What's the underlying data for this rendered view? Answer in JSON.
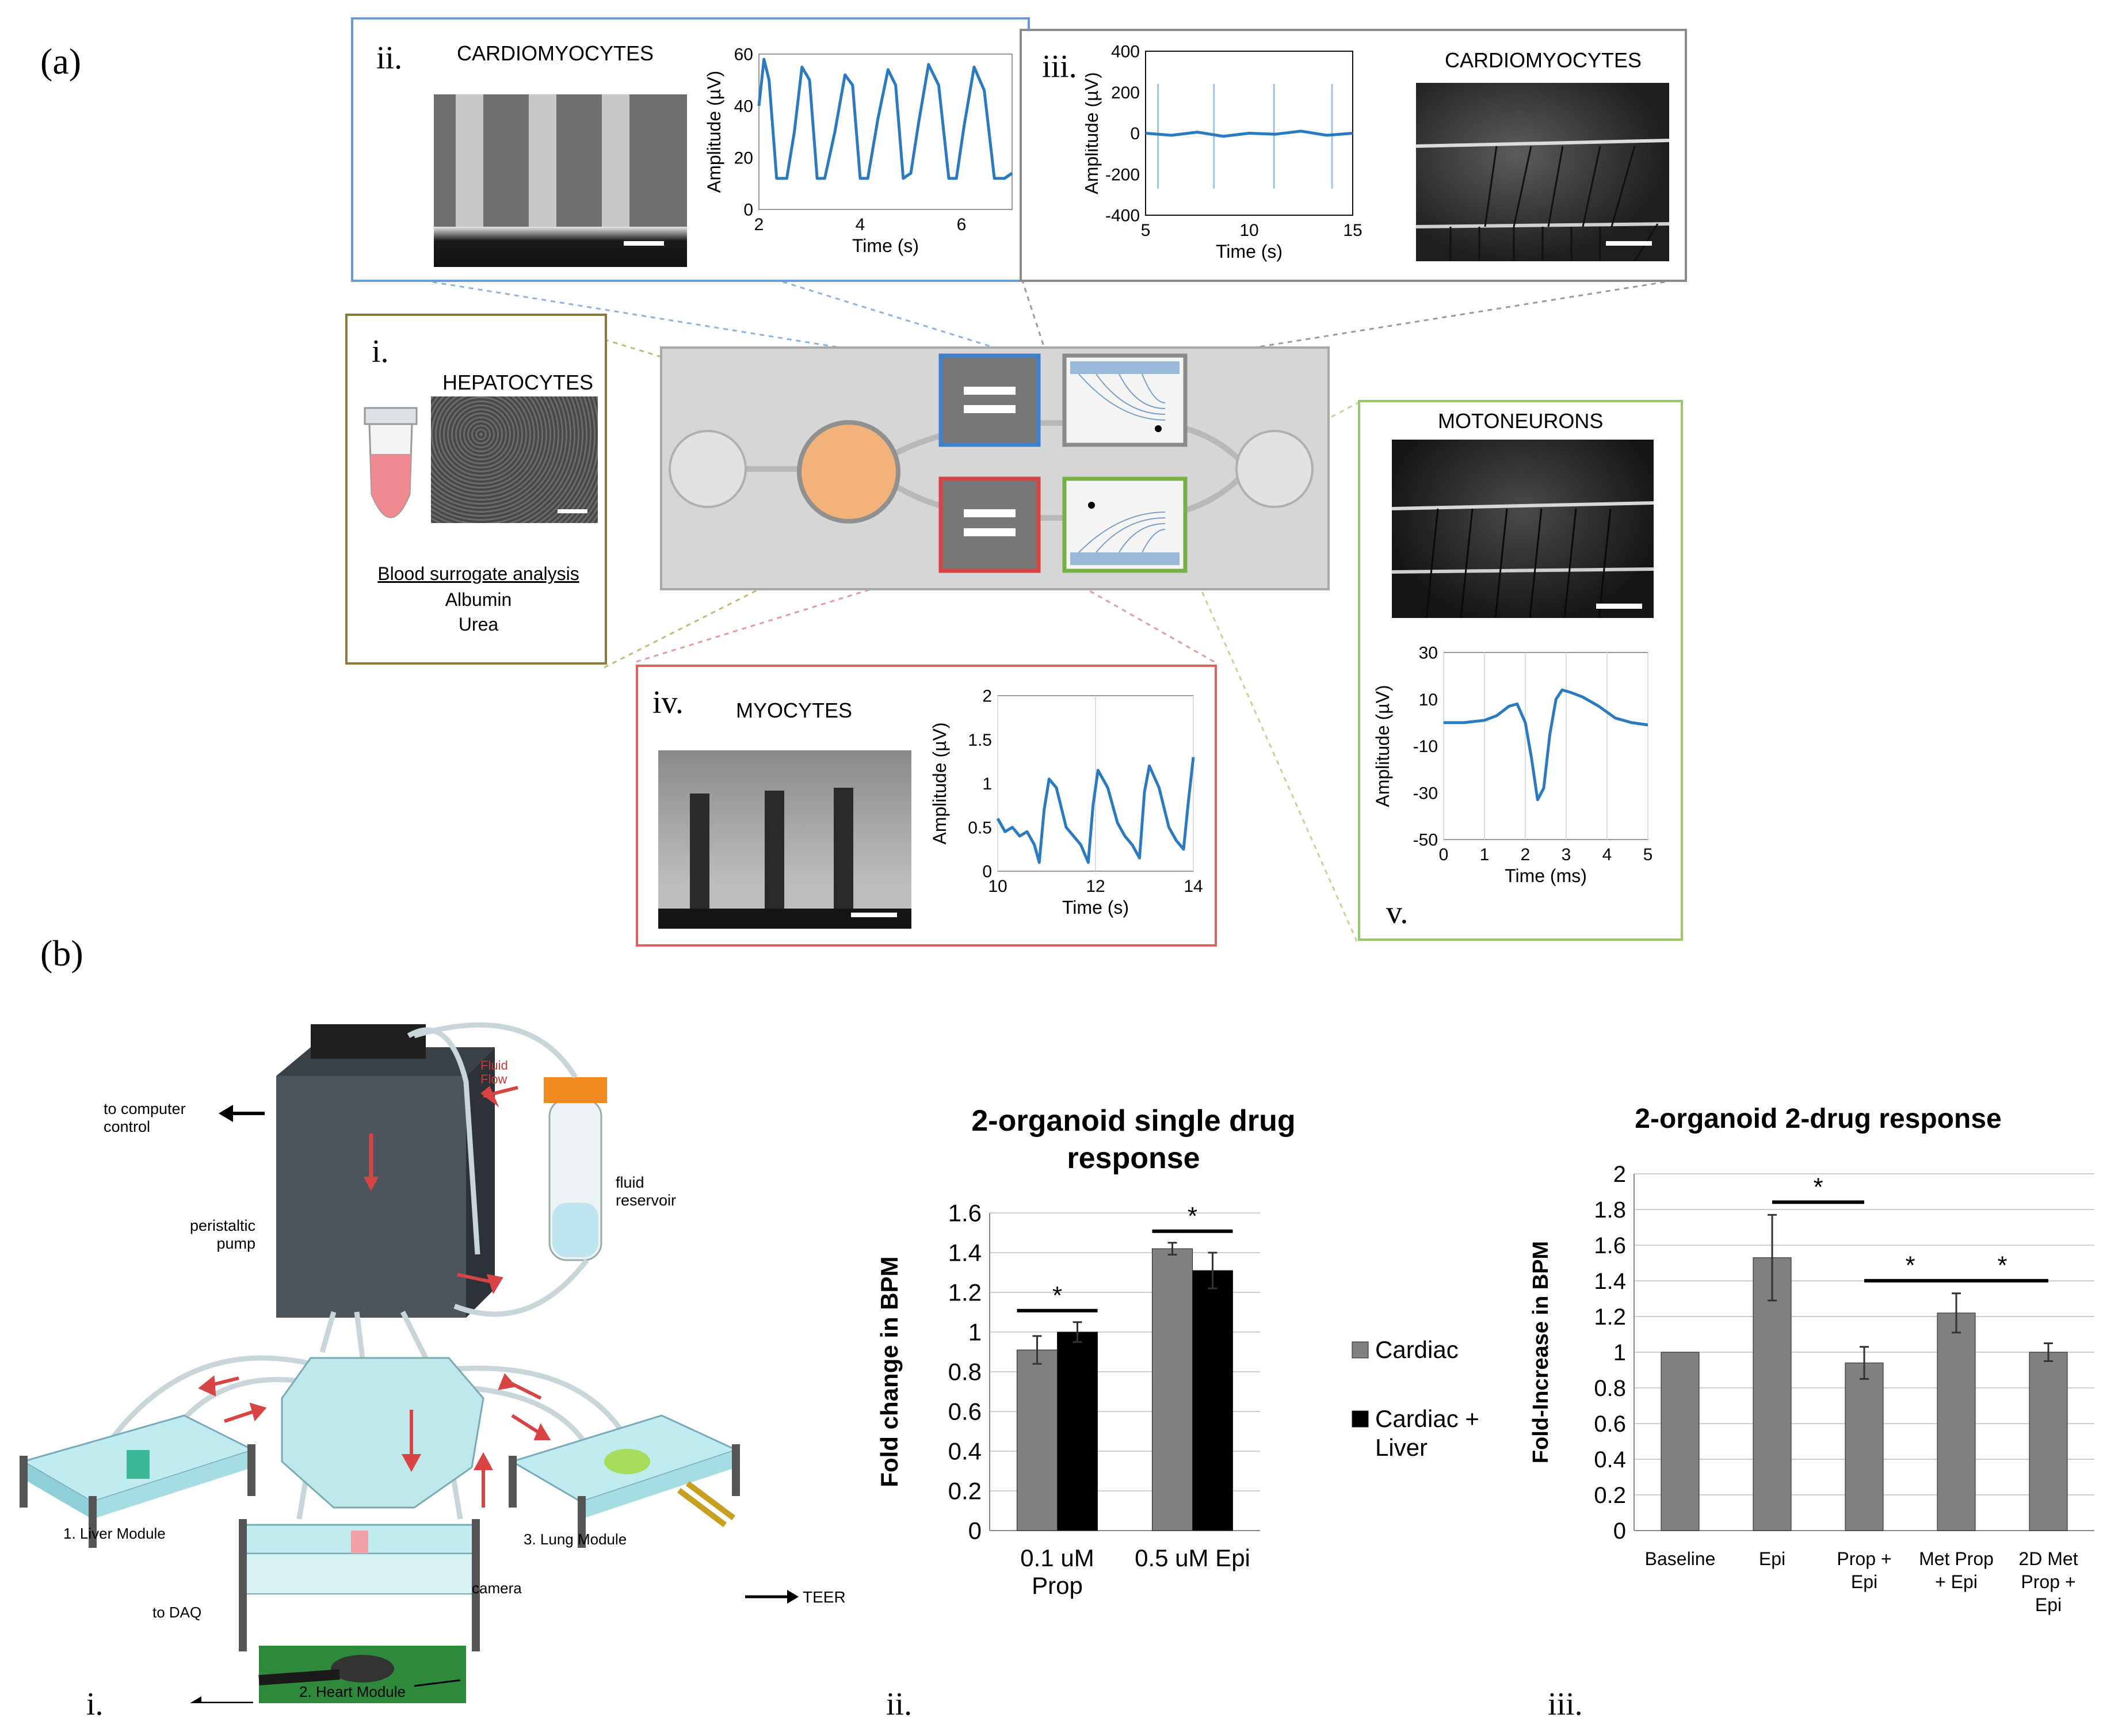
{
  "panel_a": {
    "label": "(a)",
    "i": {
      "roman": "i.",
      "title": "HEPATOCYTES",
      "analysis_heading": "Blood surrogate analysis",
      "analytes": [
        "Albumin",
        "Urea"
      ],
      "colors": {
        "border": "#8b7a3a",
        "fluid": "#f08a90"
      }
    },
    "ii": {
      "roman": "ii.",
      "title": "CARDIOMYOCYTES",
      "colors": {
        "border": "#6a9bd2",
        "trace": "#2a7ac0"
      },
      "chart_data": {
        "type": "line",
        "xlabel": "Time (s)",
        "ylabel": "Amplitude (µV)",
        "xlim": [
          2,
          7
        ],
        "ylim": [
          0,
          60
        ],
        "xticks": [
          2,
          4,
          6
        ],
        "yticks": [
          0,
          20,
          40,
          60
        ],
        "x": [
          2.0,
          2.1,
          2.2,
          2.35,
          2.55,
          2.7,
          2.85,
          3.0,
          3.15,
          3.3,
          3.5,
          3.7,
          3.85,
          4.0,
          4.15,
          4.35,
          4.55,
          4.7,
          4.85,
          5.0,
          5.15,
          5.35,
          5.55,
          5.75,
          5.9,
          6.05,
          6.25,
          6.45,
          6.65,
          6.85,
          7.0
        ],
        "y": [
          40,
          58,
          50,
          12,
          12,
          30,
          55,
          50,
          12,
          12,
          30,
          52,
          48,
          12,
          12,
          35,
          54,
          48,
          12,
          14,
          33,
          56,
          48,
          12,
          12,
          32,
          55,
          46,
          12,
          12,
          14
        ]
      }
    },
    "iii": {
      "roman": "iii.",
      "title": "CARDIOMYOCYTES",
      "colors": {
        "border": "#8a8a8a",
        "trace": "#2a7ac0"
      },
      "chart_data": {
        "type": "line",
        "xlabel": "Time (s)",
        "ylabel": "Amplitude (µV)",
        "xlim": [
          5,
          15
        ],
        "ylim": [
          -400,
          400
        ],
        "xticks": [
          5,
          10,
          15
        ],
        "yticks": [
          -400,
          -200,
          0,
          200,
          400
        ],
        "spikes_x": [
          5.6,
          8.3,
          11.2,
          14.0
        ],
        "spike_range": [
          -270,
          240
        ],
        "baseline": [
          0,
          -10,
          5,
          -15,
          0,
          -5,
          10,
          -10,
          0
        ]
      }
    },
    "iv": {
      "roman": "iv.",
      "title": "MYOCYTES",
      "colors": {
        "border": "#e06060",
        "trace": "#2a7ac0"
      },
      "chart_data": {
        "type": "line",
        "xlabel": "Time (s)",
        "ylabel": "Amplitude (µV)",
        "xlim": [
          10,
          14
        ],
        "ylim": [
          0,
          2
        ],
        "xticks": [
          10,
          12,
          14
        ],
        "yticks": [
          0,
          0.5,
          1,
          1.5,
          2
        ],
        "x": [
          10.0,
          10.15,
          10.3,
          10.45,
          10.6,
          10.75,
          10.85,
          10.95,
          11.05,
          11.2,
          11.4,
          11.55,
          11.7,
          11.85,
          11.95,
          12.05,
          12.25,
          12.45,
          12.6,
          12.75,
          12.9,
          13.0,
          13.1,
          13.3,
          13.5,
          13.65,
          13.8,
          13.9,
          14.0
        ],
        "y": [
          0.6,
          0.45,
          0.5,
          0.4,
          0.45,
          0.3,
          0.1,
          0.7,
          1.05,
          0.95,
          0.5,
          0.4,
          0.3,
          0.1,
          0.75,
          1.15,
          0.95,
          0.55,
          0.4,
          0.3,
          0.15,
          0.9,
          1.2,
          0.95,
          0.5,
          0.35,
          0.25,
          0.8,
          1.3
        ]
      }
    },
    "v": {
      "roman": "v.",
      "title": "MOTONEURONS",
      "colors": {
        "border": "#98c868",
        "trace": "#2a7ac0"
      },
      "chart_data": {
        "type": "line",
        "xlabel": "Time (ms)",
        "ylabel": "Amplitude (µV)",
        "xlim": [
          0,
          5
        ],
        "ylim": [
          -50,
          30
        ],
        "xticks": [
          0,
          1,
          2,
          3,
          4,
          5
        ],
        "yticks": [
          -50,
          -30,
          -10,
          10,
          30
        ],
        "x": [
          0,
          0.5,
          1.0,
          1.3,
          1.6,
          1.8,
          2.0,
          2.15,
          2.3,
          2.45,
          2.6,
          2.75,
          2.9,
          3.1,
          3.4,
          3.8,
          4.2,
          4.6,
          5.0
        ],
        "y": [
          0,
          0,
          1,
          3,
          7,
          8,
          0,
          -15,
          -33,
          -28,
          -5,
          10,
          14,
          13,
          11,
          7,
          2,
          0,
          -1
        ]
      }
    },
    "chip_colors": {
      "blue": "#3f7fd0",
      "gray": "#8a8a8a",
      "red": "#d84444",
      "green": "#78b048",
      "reservoir": "#f2b27a"
    }
  },
  "panel_b": {
    "label": "(b)",
    "i": {
      "roman": "i.",
      "labels": {
        "computer": "to computer\ncontrol",
        "fluid_flow": "Fluid\nFlow",
        "fluid_reservoir": "fluid\nreservoir",
        "pump": "peristaltic\npump",
        "liver": "1. Liver Module",
        "heart": "2. Heart Module",
        "lung": "3. Lung Module",
        "camera": "camera",
        "daq": "to DAQ",
        "teer": "TEER"
      }
    },
    "ii": {
      "roman": "ii.",
      "chart_data": {
        "type": "bar",
        "title": "2-organoid single drug response",
        "ylabel": "Fold change in BPM",
        "categories": [
          "0.1 uM Prop",
          "0.5 uM Epi"
        ],
        "ylim": [
          0,
          1.6
        ],
        "yticks": [
          0,
          0.2,
          0.4,
          0.6,
          0.8,
          1,
          1.2,
          1.4,
          1.6
        ],
        "series": [
          {
            "name": "Cardiac",
            "color": "#808080",
            "values": [
              0.91,
              1.42
            ],
            "errors": [
              0.07,
              0.03
            ]
          },
          {
            "name": "Cardiac + Liver",
            "color": "#000000",
            "values": [
              1.0,
              1.31
            ],
            "errors": [
              0.05,
              0.09
            ]
          }
        ],
        "significance": [
          "*",
          "*"
        ],
        "category_lines": [
          [
            "0.1 uM",
            "Prop"
          ],
          [
            "0.5 uM Epi"
          ]
        ],
        "legend_lines": [
          [
            "Cardiac"
          ],
          [
            "Cardiac +",
            "Liver"
          ]
        ]
      }
    },
    "iii": {
      "roman": "iii.",
      "chart_data": {
        "type": "bar",
        "title": "2-organoid 2-drug response",
        "ylabel": "Fold-Increase in BPM",
        "categories": [
          "Baseline",
          "Epi",
          "Prop + Epi",
          "Met Prop + Epi",
          "2D Met Prop + Epi"
        ],
        "category_lines": [
          [
            "Baseline"
          ],
          [
            "Epi"
          ],
          [
            "Prop +",
            "Epi"
          ],
          [
            "Met Prop",
            "+ Epi"
          ],
          [
            "2D Met",
            "Prop +",
            "Epi"
          ]
        ],
        "ylim": [
          0,
          2
        ],
        "yticks": [
          0,
          0.2,
          0.4,
          0.6,
          0.8,
          1,
          1.2,
          1.4,
          1.6,
          1.8,
          2
        ],
        "values": [
          1.0,
          1.53,
          0.94,
          1.22,
          1.0
        ],
        "errors": [
          0,
          0.24,
          0.09,
          0.11,
          0.05
        ],
        "color": "#808080",
        "significance": [
          {
            "from": 1,
            "to": 2,
            "label": "*"
          },
          {
            "from": 2,
            "to": 3,
            "label": "*"
          },
          {
            "from": 3,
            "to": 4,
            "label": "*"
          }
        ]
      }
    }
  }
}
